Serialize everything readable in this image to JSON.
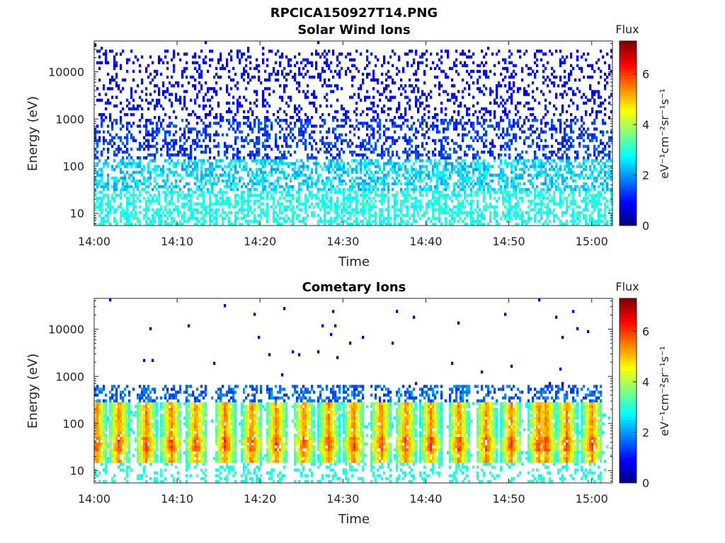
{
  "figure_title": "RPCICA150927T14.PNG",
  "colorbar": {
    "title": "Flux",
    "unit_label": "eV⁻¹cm⁻²sr⁻¹s⁻¹",
    "ticks": [
      "0",
      "2",
      "4",
      "6"
    ],
    "range": [
      0,
      7.3
    ],
    "colormap": "jet"
  },
  "chart_data": [
    {
      "type": "heatmap",
      "title": "Solar Wind Ions",
      "xlabel": "Time",
      "ylabel": "Energy (eV)",
      "x_range_minutes": [
        0,
        62.5
      ],
      "x_ticks": [
        "14:00",
        "14:10",
        "14:20",
        "14:30",
        "14:40",
        "14:50",
        "15:00"
      ],
      "y_scale": "log",
      "y_range": [
        5.5,
        45000
      ],
      "y_ticks": [
        "10",
        "100",
        "1000",
        "10000"
      ],
      "z_range": [
        0,
        7.3
      ],
      "description_bands": [
        {
          "energy_eV": [
            1000,
            30000
          ],
          "flux": 0.8,
          "occupancy": "sparse"
        },
        {
          "energy_eV": [
            150,
            1000
          ],
          "flux": 1.2,
          "occupancy": "moderate"
        },
        {
          "energy_eV": [
            30,
            150
          ],
          "flux": 2.4,
          "occupancy": "patchy"
        },
        {
          "energy_eV": [
            5.5,
            30
          ],
          "flux": 2.8,
          "occupancy": "vertical stripes"
        }
      ]
    },
    {
      "type": "heatmap",
      "title": "Cometary Ions",
      "xlabel": "Time",
      "ylabel": "Energy (eV)",
      "x_range_minutes": [
        0,
        62.5
      ],
      "x_ticks": [
        "14:00",
        "14:10",
        "14:20",
        "14:30",
        "14:40",
        "14:50",
        "15:00"
      ],
      "y_scale": "log",
      "y_range": [
        5.5,
        45000
      ],
      "y_ticks": [
        "10",
        "100",
        "1000",
        "10000"
      ],
      "z_range": [
        0,
        7.3
      ],
      "burst_times_minutes": [
        0.3,
        3.0,
        6.3,
        9.3,
        12.3,
        15.8,
        19.0,
        22.0,
        25.3,
        28.3,
        31.3,
        34.6,
        37.6,
        40.6,
        44.0,
        47.3,
        50.3,
        53.6,
        54.5,
        57.0,
        60.0
      ],
      "peak_flux_range": [
        4.5,
        6.0
      ],
      "energy_band_eV": [
        15,
        700
      ]
    }
  ]
}
